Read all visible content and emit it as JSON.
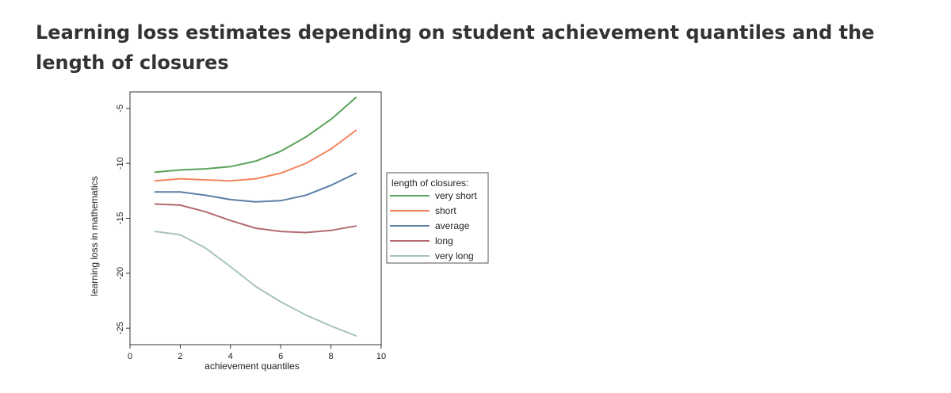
{
  "page": {
    "title": "Learning loss estimates depending on student achievement quantiles and the length of closures"
  },
  "chart_data": {
    "type": "line",
    "xlabel": "achievement quantiles",
    "ylabel": "learning loss in mathematics",
    "xlim": [
      0,
      10
    ],
    "ylim": [
      -26.5,
      -3.5
    ],
    "xticks": [
      0,
      2,
      4,
      6,
      8,
      10
    ],
    "yticks": [
      -25,
      -20,
      -15,
      -10,
      -5
    ],
    "grid": false,
    "legend": {
      "title": "length of closures:",
      "placement": "right"
    },
    "x": [
      1,
      2,
      3,
      4,
      5,
      6,
      7,
      8,
      9
    ],
    "series": [
      {
        "name": "very short",
        "color": "#5aa35a",
        "values": [
          -10.8,
          -10.6,
          -10.5,
          -10.3,
          -9.8,
          -8.9,
          -7.6,
          -6.0,
          -4.0
        ]
      },
      {
        "name": "short",
        "color": "#f4855e",
        "values": [
          -11.6,
          -11.4,
          -11.5,
          -11.6,
          -11.4,
          -10.9,
          -10.0,
          -8.7,
          -7.0
        ]
      },
      {
        "name": "average",
        "color": "#5b7fa6",
        "values": [
          -12.6,
          -12.6,
          -12.9,
          -13.3,
          -13.5,
          -13.4,
          -12.9,
          -12.0,
          -10.9
        ]
      },
      {
        "name": "long",
        "color": "#b46a72",
        "values": [
          -13.7,
          -13.8,
          -14.4,
          -15.2,
          -15.9,
          -16.2,
          -16.3,
          -16.1,
          -15.7
        ]
      },
      {
        "name": "very long",
        "color": "#a8c4b6",
        "values": [
          -16.2,
          -16.5,
          -17.7,
          -19.4,
          -21.2,
          -22.6,
          -23.8,
          -24.8,
          -25.7
        ]
      }
    ]
  }
}
